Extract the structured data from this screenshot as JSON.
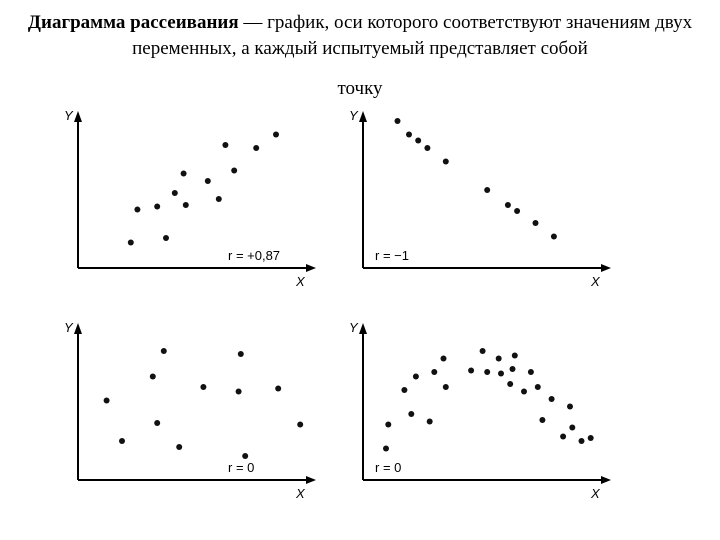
{
  "header": {
    "title_bold": "Диаграмма рассеивания",
    "title_rest": " — график, оси которого соответствуют значениям двух переменных, а каждый испытуемый представляет собой",
    "title_tail": "точку"
  },
  "chart_data": [
    {
      "type": "scatter",
      "xlabel": "X",
      "ylabel": "Y",
      "annotation": "r = +0,87",
      "xlim": [
        0,
        10
      ],
      "ylim": [
        0,
        10
      ],
      "points": [
        [
          2.4,
          1.7
        ],
        [
          2.7,
          3.9
        ],
        [
          3.6,
          4.1
        ],
        [
          4.0,
          2.0
        ],
        [
          4.4,
          5.0
        ],
        [
          4.8,
          6.3
        ],
        [
          4.9,
          4.2
        ],
        [
          5.9,
          5.8
        ],
        [
          6.4,
          4.6
        ],
        [
          6.7,
          8.2
        ],
        [
          7.1,
          6.5
        ],
        [
          8.1,
          8.0
        ],
        [
          9.0,
          8.9
        ]
      ],
      "point_color": "#111111"
    },
    {
      "type": "scatter",
      "xlabel": "X",
      "ylabel": "Y",
      "annotation": "r = −1",
      "xlim": [
        0,
        10
      ],
      "ylim": [
        0,
        10
      ],
      "points": [
        [
          1.5,
          9.8
        ],
        [
          2.0,
          8.9
        ],
        [
          2.4,
          8.5
        ],
        [
          2.8,
          8.0
        ],
        [
          3.6,
          7.1
        ],
        [
          5.4,
          5.2
        ],
        [
          6.3,
          4.2
        ],
        [
          6.7,
          3.8
        ],
        [
          7.5,
          3.0
        ],
        [
          8.3,
          2.1
        ]
      ],
      "point_color": "#111111"
    },
    {
      "type": "scatter",
      "xlabel": "X",
      "ylabel": "Y",
      "annotation": "r = 0",
      "xlim": [
        0,
        10
      ],
      "ylim": [
        0,
        10
      ],
      "points": [
        [
          1.3,
          5.3
        ],
        [
          2.0,
          2.6
        ],
        [
          3.4,
          6.9
        ],
        [
          3.6,
          3.8
        ],
        [
          3.9,
          8.6
        ],
        [
          4.6,
          2.2
        ],
        [
          5.7,
          6.2
        ],
        [
          7.3,
          5.9
        ],
        [
          7.4,
          8.4
        ],
        [
          7.6,
          1.6
        ],
        [
          9.1,
          6.1
        ],
        [
          10.1,
          3.7
        ]
      ],
      "point_color": "#111111"
    },
    {
      "type": "scatter",
      "xlabel": "X",
      "ylabel": "Y",
      "annotation": "r = 0",
      "xlim": [
        0,
        10
      ],
      "ylim": [
        0,
        10
      ],
      "points": [
        [
          1.0,
          2.1
        ],
        [
          1.1,
          3.7
        ],
        [
          1.8,
          6.0
        ],
        [
          2.1,
          4.4
        ],
        [
          2.3,
          6.9
        ],
        [
          2.9,
          3.9
        ],
        [
          3.1,
          7.2
        ],
        [
          3.5,
          8.1
        ],
        [
          3.6,
          6.2
        ],
        [
          4.7,
          7.3
        ],
        [
          5.2,
          8.6
        ],
        [
          5.4,
          7.2
        ],
        [
          5.9,
          8.1
        ],
        [
          6.0,
          7.1
        ],
        [
          6.4,
          6.4
        ],
        [
          6.5,
          7.4
        ],
        [
          6.6,
          8.3
        ],
        [
          7.0,
          5.9
        ],
        [
          7.3,
          7.2
        ],
        [
          7.6,
          6.2
        ],
        [
          7.8,
          4.0
        ],
        [
          8.2,
          5.4
        ],
        [
          8.7,
          2.9
        ],
        [
          9.0,
          4.9
        ],
        [
          9.1,
          3.5
        ],
        [
          9.5,
          2.6
        ],
        [
          9.9,
          2.8
        ]
      ],
      "point_color": "#111111"
    }
  ]
}
